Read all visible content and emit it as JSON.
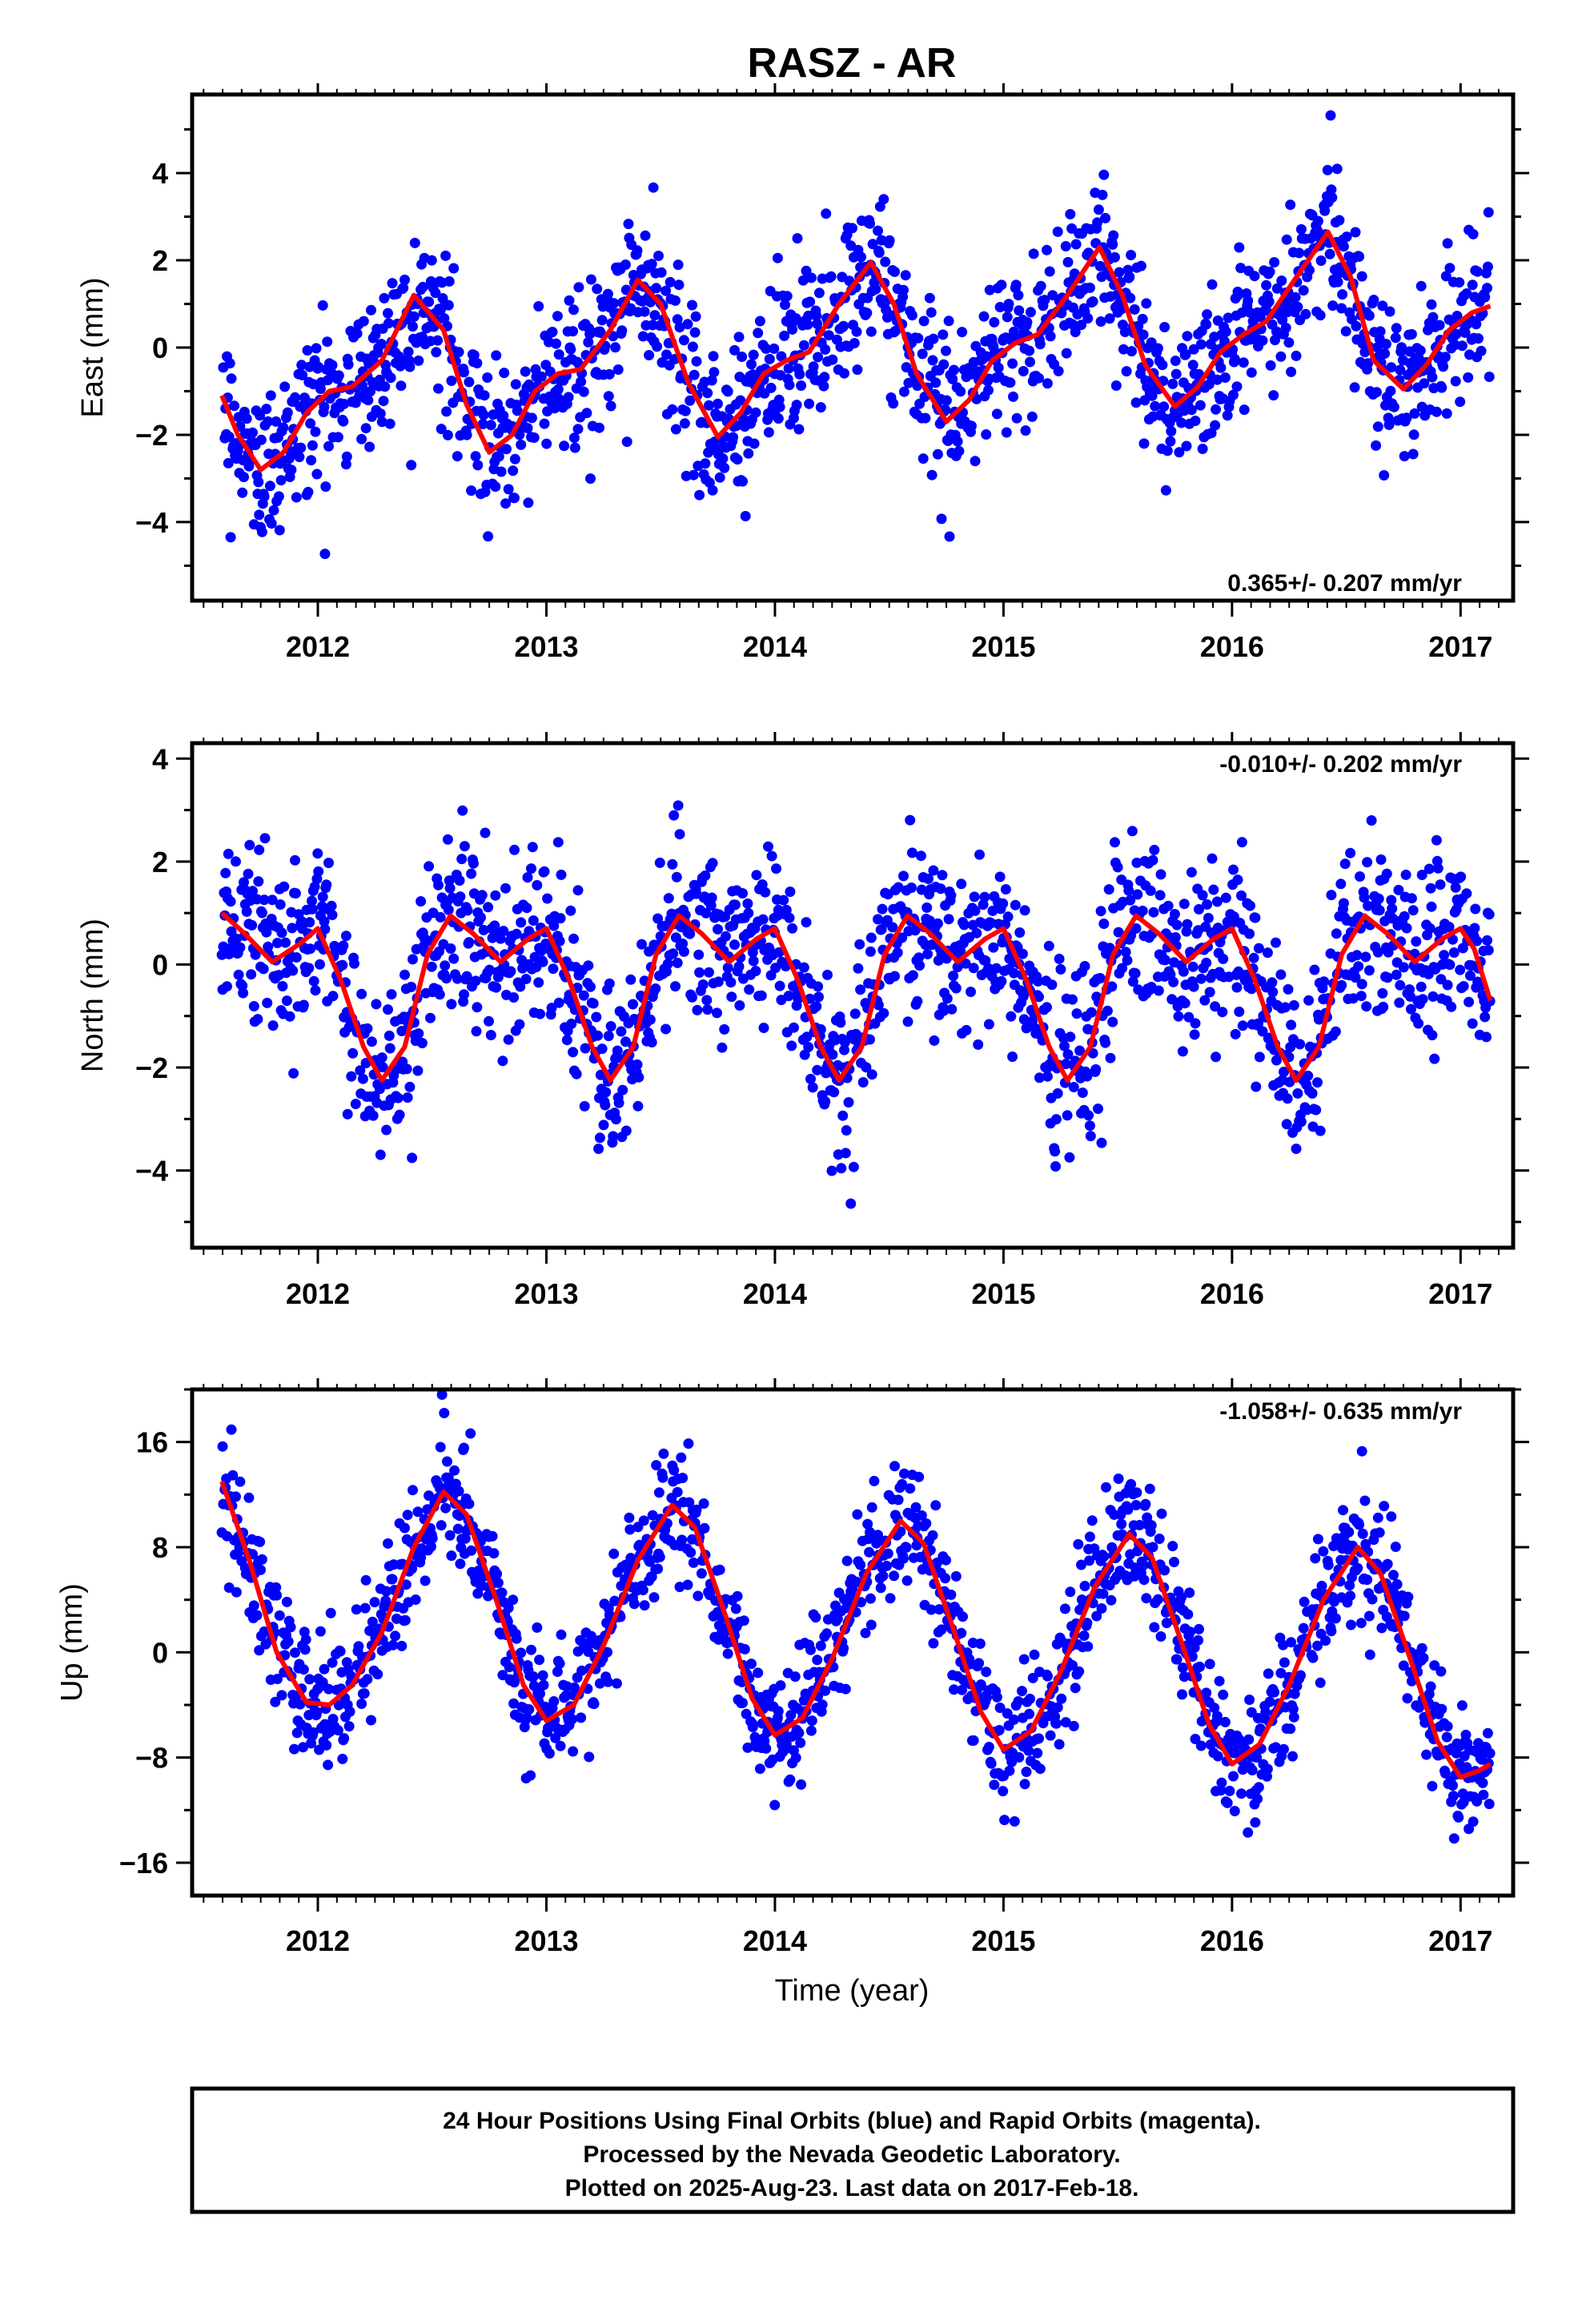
{
  "title": "RASZ - AR",
  "footer": {
    "line1": "24 Hour Positions Using Final Orbits (blue) and Rapid Orbits (magenta).",
    "line2": "Processed by the Nevada Geodetic Laboratory.",
    "line3": "Plotted on 2025-Aug-23. Last data on 2017-Feb-18."
  },
  "chart_data": [
    {
      "type": "scatter",
      "name": "east",
      "ylabel": "East (mm)",
      "xlabel": "",
      "xlim": [
        2011.45,
        2017.23
      ],
      "ylim": [
        -5.8,
        5.8
      ],
      "x_ticks": [
        2012,
        2013,
        2014,
        2015,
        2016,
        2017
      ],
      "y_ticks": [
        -4,
        -2,
        0,
        2,
        4
      ],
      "rate_label": "0.365+/- 0.207 mm/yr",
      "grid": false,
      "point_color": "#0000ff",
      "fit_color": "#ff0000",
      "data_start": 2011.58,
      "data_end": 2017.13,
      "point_spacing_years": 0.0032,
      "scatter_sigma_mm": 0.9,
      "fit_curve": [
        [
          2011.58,
          -1.1
        ],
        [
          2011.65,
          -2.0
        ],
        [
          2011.75,
          -2.8
        ],
        [
          2011.85,
          -2.4
        ],
        [
          2011.95,
          -1.5
        ],
        [
          2012.05,
          -1.0
        ],
        [
          2012.15,
          -0.9
        ],
        [
          2012.28,
          -0.3
        ],
        [
          2012.42,
          1.2
        ],
        [
          2012.55,
          0.4
        ],
        [
          2012.65,
          -1.3
        ],
        [
          2012.75,
          -2.4
        ],
        [
          2012.85,
          -2.0
        ],
        [
          2012.95,
          -1.0
        ],
        [
          2013.05,
          -0.6
        ],
        [
          2013.15,
          -0.5
        ],
        [
          2013.28,
          0.4
        ],
        [
          2013.4,
          1.55
        ],
        [
          2013.5,
          1.0
        ],
        [
          2013.62,
          -0.8
        ],
        [
          2013.75,
          -2.05
        ],
        [
          2013.85,
          -1.5
        ],
        [
          2013.95,
          -0.6
        ],
        [
          2014.05,
          -0.3
        ],
        [
          2014.15,
          -0.1
        ],
        [
          2014.28,
          1.0
        ],
        [
          2014.42,
          1.95
        ],
        [
          2014.52,
          1.0
        ],
        [
          2014.62,
          -0.6
        ],
        [
          2014.75,
          -1.7
        ],
        [
          2014.85,
          -1.2
        ],
        [
          2014.95,
          -0.3
        ],
        [
          2015.05,
          0.1
        ],
        [
          2015.15,
          0.3
        ],
        [
          2015.28,
          1.2
        ],
        [
          2015.42,
          2.3
        ],
        [
          2015.52,
          1.2
        ],
        [
          2015.62,
          -0.4
        ],
        [
          2015.75,
          -1.35
        ],
        [
          2015.85,
          -0.9
        ],
        [
          2015.95,
          -0.1
        ],
        [
          2016.05,
          0.3
        ],
        [
          2016.15,
          0.6
        ],
        [
          2016.28,
          1.6
        ],
        [
          2016.42,
          2.65
        ],
        [
          2016.52,
          1.6
        ],
        [
          2016.62,
          -0.3
        ],
        [
          2016.75,
          -0.95
        ],
        [
          2016.85,
          -0.4
        ],
        [
          2016.95,
          0.4
        ],
        [
          2017.05,
          0.8
        ],
        [
          2017.13,
          0.95
        ]
      ]
    },
    {
      "type": "scatter",
      "name": "north",
      "ylabel": "North (mm)",
      "xlabel": "",
      "xlim": [
        2011.45,
        2017.23
      ],
      "ylim": [
        -5.5,
        4.3
      ],
      "x_ticks": [
        2012,
        2013,
        2014,
        2015,
        2016,
        2017
      ],
      "y_ticks": [
        -4,
        -2,
        0,
        2,
        4
      ],
      "rate_label": "-0.010+/- 0.202 mm/yr",
      "grid": false,
      "point_color": "#0000ff",
      "fit_color": "#ff0000",
      "data_start": 2011.58,
      "data_end": 2017.13,
      "point_spacing_years": 0.0032,
      "scatter_sigma_mm": 0.85,
      "fit_curve": [
        [
          2011.58,
          1.0
        ],
        [
          2011.68,
          0.6
        ],
        [
          2011.8,
          0.05
        ],
        [
          2011.92,
          0.4
        ],
        [
          2012.0,
          0.7
        ],
        [
          2012.1,
          -0.3
        ],
        [
          2012.2,
          -1.6
        ],
        [
          2012.28,
          -2.25
        ],
        [
          2012.38,
          -1.6
        ],
        [
          2012.48,
          0.2
        ],
        [
          2012.58,
          0.95
        ],
        [
          2012.68,
          0.6
        ],
        [
          2012.8,
          0.05
        ],
        [
          2012.92,
          0.5
        ],
        [
          2013.0,
          0.7
        ],
        [
          2013.1,
          -0.3
        ],
        [
          2013.2,
          -1.6
        ],
        [
          2013.28,
          -2.25
        ],
        [
          2013.38,
          -1.6
        ],
        [
          2013.48,
          0.2
        ],
        [
          2013.58,
          0.95
        ],
        [
          2013.68,
          0.6
        ],
        [
          2013.8,
          0.05
        ],
        [
          2013.92,
          0.5
        ],
        [
          2014.0,
          0.7
        ],
        [
          2014.1,
          -0.3
        ],
        [
          2014.2,
          -1.6
        ],
        [
          2014.28,
          -2.25
        ],
        [
          2014.38,
          -1.6
        ],
        [
          2014.48,
          0.2
        ],
        [
          2014.58,
          0.95
        ],
        [
          2014.68,
          0.6
        ],
        [
          2014.8,
          0.05
        ],
        [
          2014.92,
          0.5
        ],
        [
          2015.0,
          0.7
        ],
        [
          2015.1,
          -0.3
        ],
        [
          2015.2,
          -1.6
        ],
        [
          2015.28,
          -2.25
        ],
        [
          2015.38,
          -1.6
        ],
        [
          2015.48,
          0.2
        ],
        [
          2015.58,
          0.95
        ],
        [
          2015.68,
          0.6
        ],
        [
          2015.8,
          0.05
        ],
        [
          2015.92,
          0.5
        ],
        [
          2016.0,
          0.7
        ],
        [
          2016.1,
          -0.3
        ],
        [
          2016.2,
          -1.6
        ],
        [
          2016.28,
          -2.25
        ],
        [
          2016.38,
          -1.6
        ],
        [
          2016.48,
          0.2
        ],
        [
          2016.58,
          0.95
        ],
        [
          2016.68,
          0.6
        ],
        [
          2016.8,
          0.05
        ],
        [
          2016.92,
          0.5
        ],
        [
          2017.0,
          0.7
        ],
        [
          2017.06,
          0.3
        ],
        [
          2017.13,
          -0.7
        ]
      ]
    },
    {
      "type": "scatter",
      "name": "up",
      "ylabel": "Up (mm)",
      "xlabel": "Time (year)",
      "xlim": [
        2011.45,
        2017.23
      ],
      "ylim": [
        -18.5,
        20.0
      ],
      "x_ticks": [
        2012,
        2013,
        2014,
        2015,
        2016,
        2017
      ],
      "y_ticks": [
        -16,
        -8,
        0,
        8,
        16
      ],
      "rate_label": "-1.058+/- 0.635 mm/yr",
      "grid": false,
      "point_color": "#0000ff",
      "fit_color": "#ff0000",
      "data_start": 2011.58,
      "data_end": 2017.13,
      "point_spacing_years": 0.0032,
      "scatter_sigma_mm": 2.4,
      "fit_curve": [
        [
          2011.58,
          13.0
        ],
        [
          2011.7,
          7.0
        ],
        [
          2011.82,
          0.0
        ],
        [
          2011.95,
          -3.8
        ],
        [
          2012.05,
          -4.0
        ],
        [
          2012.15,
          -2.5
        ],
        [
          2012.28,
          1.5
        ],
        [
          2012.42,
          8.0
        ],
        [
          2012.55,
          12.2
        ],
        [
          2012.65,
          10.5
        ],
        [
          2012.78,
          4.0
        ],
        [
          2012.9,
          -2.5
        ],
        [
          2013.0,
          -5.2
        ],
        [
          2013.12,
          -4.0
        ],
        [
          2013.25,
          0.5
        ],
        [
          2013.4,
          7.0
        ],
        [
          2013.55,
          11.2
        ],
        [
          2013.65,
          9.5
        ],
        [
          2013.78,
          3.0
        ],
        [
          2013.9,
          -3.5
        ],
        [
          2014.0,
          -6.3
        ],
        [
          2014.12,
          -5.0
        ],
        [
          2014.25,
          -0.5
        ],
        [
          2014.4,
          6.0
        ],
        [
          2014.55,
          10.0
        ],
        [
          2014.65,
          8.3
        ],
        [
          2014.78,
          1.8
        ],
        [
          2014.9,
          -4.5
        ],
        [
          2015.0,
          -7.4
        ],
        [
          2015.12,
          -6.0
        ],
        [
          2015.25,
          -1.5
        ],
        [
          2015.4,
          5.0
        ],
        [
          2015.55,
          9.0
        ],
        [
          2015.65,
          7.2
        ],
        [
          2015.78,
          0.7
        ],
        [
          2015.9,
          -5.5
        ],
        [
          2016.0,
          -8.5
        ],
        [
          2016.12,
          -7.0
        ],
        [
          2016.25,
          -2.5
        ],
        [
          2016.4,
          4.0
        ],
        [
          2016.55,
          8.0
        ],
        [
          2016.65,
          6.0
        ],
        [
          2016.78,
          -0.5
        ],
        [
          2016.9,
          -6.8
        ],
        [
          2017.0,
          -9.5
        ],
        [
          2017.08,
          -9.0
        ],
        [
          2017.13,
          -8.5
        ]
      ]
    }
  ]
}
